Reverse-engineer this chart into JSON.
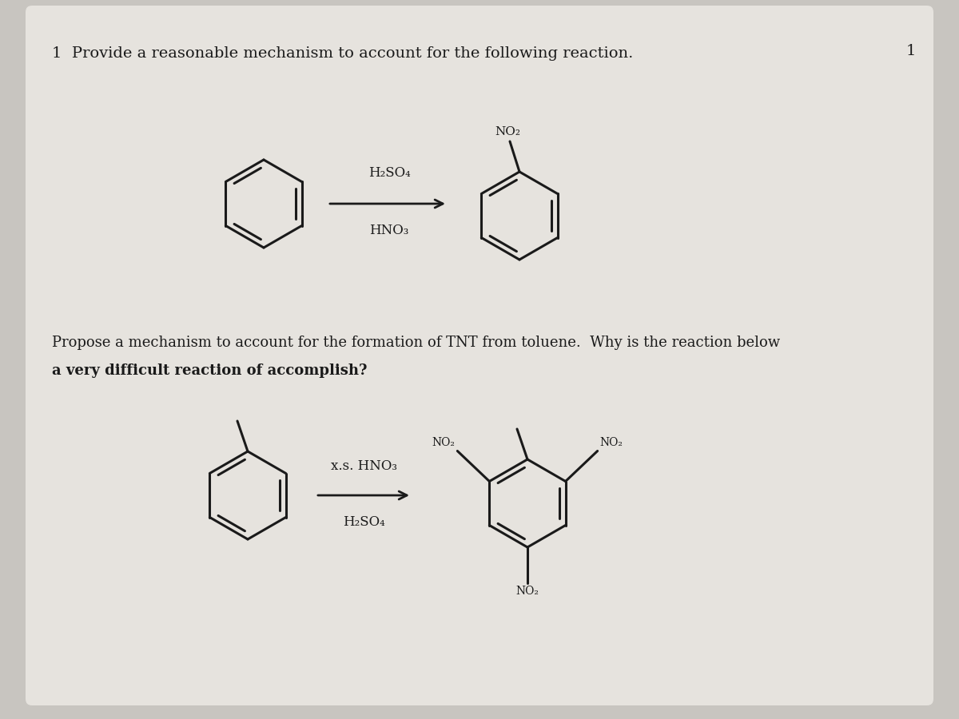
{
  "bg_color": "#c8c5c0",
  "page_color": "#e6e3de",
  "title_text": "1  Provide a reasonable mechanism to account for the following reaction.",
  "page_num": "1",
  "question2_line1": "Propose a mechanism to account for the formation of TNT from toluene.  Why is the reaction below",
  "question2_line2": "a very difficult reaction of accomplish?",
  "reagent1_top": "H₂SO₄",
  "reagent1_bottom": "HNO₃",
  "reagent2_top": "x.s. HNO₃",
  "reagent2_bottom": "H₂SO₄",
  "no2_label": "NO₂",
  "line_color": "#1a1a1a",
  "text_color": "#1a1a1a"
}
